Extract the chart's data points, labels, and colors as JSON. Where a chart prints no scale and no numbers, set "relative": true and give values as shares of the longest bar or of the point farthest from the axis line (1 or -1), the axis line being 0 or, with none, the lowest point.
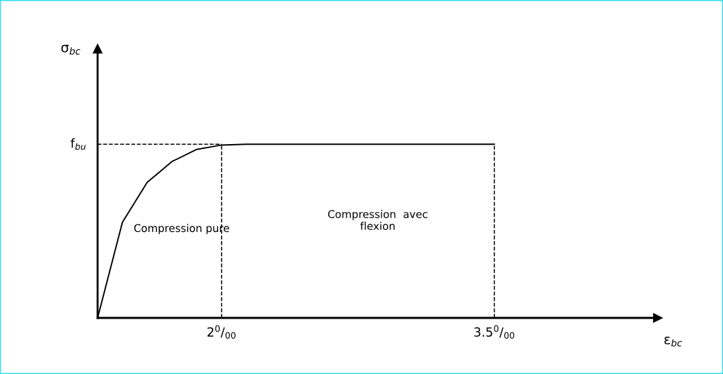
{
  "chart_data": {
    "type": "line",
    "relative": true,
    "xlabel": "ε$_{bc}$",
    "categories": [
      null,
      null,
      null,
      null,
      null,
      "2$^{0}$/$_{00}$",
      null,
      null,
      null,
      null,
      null,
      null,
      null,
      null,
      null,
      null,
      "3.5$^{0}$/$_{00}$",
      null,
      null,
      null,
      null,
      null,
      null
    ],
    "series": [
      {
        "color": "#000000",
        "line_style": "solid",
        "values": [
          0,
          0.55,
          0.78,
          0.9,
          0.97,
          0.995,
          1,
          1,
          1,
          1,
          1,
          1,
          1,
          1,
          1,
          1,
          1,
          null,
          null,
          null,
          null,
          null,
          null
        ]
      },
      {
        "color": "#000000",
        "line_style": "dashed",
        "values": [
          1,
          1,
          1,
          1,
          1,
          1,
          null,
          null,
          null,
          null,
          null,
          null,
          null,
          null,
          null,
          null,
          null,
          null,
          null,
          null,
          null,
          null,
          null
        ]
      }
    ],
    "ref_lines": [
      {
        "axis": "x",
        "value": "2$^{0}$/$_{00}$",
        "line_style": "dashed"
      },
      {
        "axis": "x",
        "value": "3.5$^{0}$/$_{00}$",
        "line_style": "dashed"
      }
    ],
    "annotations": [
      "σ$_{bc}$",
      "f$_{bu}$",
      "Compression pure",
      "Compression  avec\nflexion"
    ],
    "grid": false,
    "legend": false,
    "marker": "none"
  }
}
